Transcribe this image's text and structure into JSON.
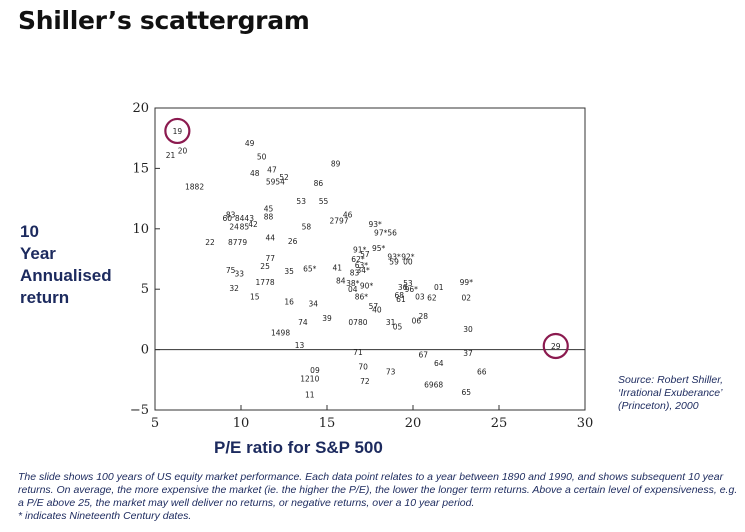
{
  "title": "Shiller’s scattergram",
  "ylabel_lines": [
    "10",
    "Year",
    "Annualised",
    "return"
  ],
  "xlabel": "P/E ratio for S&P 500",
  "source_lines": [
    "Source: Robert Shiller,",
    "‘Irrational Exuberance’",
    "(Princeton), 2000"
  ],
  "caption": "The slide shows 100 years of US equity market performance. Each data point relates to a year between 1890 and 1990, and shows subsequent 10 year returns. On average, the more expensive the market (ie. the higher the P/E), the lower the longer term returns. Above a certain level of expensiveness, e.g. a P/E above 25, the market may well deliver no returns, or negative returns, over a 10 year period.",
  "footnote": "* indicates Nineteenth Century dates.",
  "colors": {
    "accent": "#8b1a4f",
    "text_blue": "#1c2a5e",
    "axis": "#333333"
  },
  "chart_data": {
    "type": "scatter",
    "xlabel": "P/E ratio for S&P 500",
    "ylabel": "10 Year Annualised return",
    "xlim": [
      5,
      30
    ],
    "ylim": [
      -5,
      20
    ],
    "xticks": [
      5,
      10,
      15,
      20,
      25,
      30
    ],
    "yticks": [
      -5,
      0,
      5,
      10,
      15,
      20
    ],
    "reference_line_y": 0,
    "grid": false,
    "highlighted": [
      "19",
      "29"
    ],
    "points": [
      {
        "label": "19",
        "x": 6.3,
        "y": 18.1
      },
      {
        "label": "20",
        "x": 6.6,
        "y": 16.5
      },
      {
        "label": "21",
        "x": 5.9,
        "y": 16.1
      },
      {
        "label": "1882",
        "x": 7.3,
        "y": 13.5
      },
      {
        "label": "49",
        "x": 10.5,
        "y": 17.1
      },
      {
        "label": "50",
        "x": 11.2,
        "y": 16.0
      },
      {
        "label": "47",
        "x": 11.8,
        "y": 14.9
      },
      {
        "label": "48",
        "x": 10.8,
        "y": 14.6
      },
      {
        "label": "52",
        "x": 12.5,
        "y": 14.3
      },
      {
        "label": "5954",
        "x": 12.0,
        "y": 13.9
      },
      {
        "label": "86",
        "x": 14.5,
        "y": 13.8
      },
      {
        "label": "89",
        "x": 15.5,
        "y": 15.4
      },
      {
        "label": "53",
        "x": 13.5,
        "y": 12.3
      },
      {
        "label": "55",
        "x": 14.8,
        "y": 12.3
      },
      {
        "label": "45",
        "x": 11.6,
        "y": 11.7
      },
      {
        "label": "83",
        "x": 9.4,
        "y": 11.2
      },
      {
        "label": "60",
        "x": 9.2,
        "y": 10.9
      },
      {
        "label": "8443",
        "x": 10.2,
        "y": 10.9
      },
      {
        "label": "88",
        "x": 11.6,
        "y": 11.0
      },
      {
        "label": "46",
        "x": 16.2,
        "y": 11.2
      },
      {
        "label": "2797",
        "x": 15.7,
        "y": 10.7
      },
      {
        "label": "24",
        "x": 9.6,
        "y": 10.2
      },
      {
        "label": "85",
        "x": 10.2,
        "y": 10.2
      },
      {
        "label": "42",
        "x": 10.7,
        "y": 10.4
      },
      {
        "label": "58",
        "x": 13.8,
        "y": 10.2
      },
      {
        "label": "93*",
        "x": 17.8,
        "y": 10.4
      },
      {
        "label": "97*56",
        "x": 18.4,
        "y": 9.7
      },
      {
        "label": "22",
        "x": 8.2,
        "y": 8.9
      },
      {
        "label": "8779",
        "x": 9.8,
        "y": 8.9
      },
      {
        "label": "44",
        "x": 11.7,
        "y": 9.3
      },
      {
        "label": "26",
        "x": 13.0,
        "y": 9.0
      },
      {
        "label": "91*",
        "x": 16.9,
        "y": 8.3
      },
      {
        "label": "95*",
        "x": 18.0,
        "y": 8.4
      },
      {
        "label": "57",
        "x": 17.2,
        "y": 7.9
      },
      {
        "label": "62*",
        "x": 16.8,
        "y": 7.5
      },
      {
        "label": "63*",
        "x": 17.0,
        "y": 7.0
      },
      {
        "label": "34*",
        "x": 17.1,
        "y": 6.6
      },
      {
        "label": "83",
        "x": 16.6,
        "y": 6.4
      },
      {
        "label": "93*",
        "x": 18.9,
        "y": 7.7
      },
      {
        "label": "92*",
        "x": 19.7,
        "y": 7.7
      },
      {
        "label": "59",
        "x": 18.9,
        "y": 7.3
      },
      {
        "label": "00",
        "x": 19.7,
        "y": 7.3
      },
      {
        "label": "77",
        "x": 11.7,
        "y": 7.6
      },
      {
        "label": "25",
        "x": 11.4,
        "y": 6.9
      },
      {
        "label": "75",
        "x": 9.4,
        "y": 6.6
      },
      {
        "label": "33",
        "x": 9.9,
        "y": 6.3
      },
      {
        "label": "35",
        "x": 12.8,
        "y": 6.5
      },
      {
        "label": "65*",
        "x": 14.0,
        "y": 6.7
      },
      {
        "label": "41",
        "x": 15.6,
        "y": 6.8
      },
      {
        "label": "1778",
        "x": 11.4,
        "y": 5.6
      },
      {
        "label": "84",
        "x": 15.8,
        "y": 5.7
      },
      {
        "label": "38*",
        "x": 16.5,
        "y": 5.5
      },
      {
        "label": "32",
        "x": 9.6,
        "y": 5.1
      },
      {
        "label": "04",
        "x": 16.5,
        "y": 5.0
      },
      {
        "label": "90*",
        "x": 17.3,
        "y": 5.3
      },
      {
        "label": "36",
        "x": 19.4,
        "y": 5.2
      },
      {
        "label": "53",
        "x": 19.7,
        "y": 5.5
      },
      {
        "label": "96*",
        "x": 19.9,
        "y": 5.0
      },
      {
        "label": "01",
        "x": 21.5,
        "y": 5.2
      },
      {
        "label": "99*",
        "x": 23.1,
        "y": 5.6
      },
      {
        "label": "15",
        "x": 10.8,
        "y": 4.4
      },
      {
        "label": "16",
        "x": 12.8,
        "y": 4.0
      },
      {
        "label": "34",
        "x": 14.2,
        "y": 3.8
      },
      {
        "label": "86*",
        "x": 17.0,
        "y": 4.4
      },
      {
        "label": "68",
        "x": 19.2,
        "y": 4.5
      },
      {
        "label": "61",
        "x": 19.3,
        "y": 4.2
      },
      {
        "label": "03",
        "x": 20.4,
        "y": 4.4
      },
      {
        "label": "62",
        "x": 21.1,
        "y": 4.3
      },
      {
        "label": "02",
        "x": 23.1,
        "y": 4.3
      },
      {
        "label": "57",
        "x": 17.7,
        "y": 3.6
      },
      {
        "label": "40",
        "x": 17.9,
        "y": 3.3
      },
      {
        "label": "74",
        "x": 13.6,
        "y": 2.3
      },
      {
        "label": "39",
        "x": 15.0,
        "y": 2.6
      },
      {
        "label": "0780",
        "x": 16.8,
        "y": 2.3
      },
      {
        "label": "31",
        "x": 18.7,
        "y": 2.3
      },
      {
        "label": "05",
        "x": 19.1,
        "y": 1.9
      },
      {
        "label": "06",
        "x": 20.2,
        "y": 2.4
      },
      {
        "label": "28",
        "x": 20.6,
        "y": 2.8
      },
      {
        "label": "30",
        "x": 23.2,
        "y": 1.7
      },
      {
        "label": "1498",
        "x": 12.3,
        "y": 1.4
      },
      {
        "label": "13",
        "x": 13.4,
        "y": 0.4
      },
      {
        "label": "71",
        "x": 16.8,
        "y": -0.2
      },
      {
        "label": "67",
        "x": 20.6,
        "y": -0.4
      },
      {
        "label": "37",
        "x": 23.2,
        "y": -0.3
      },
      {
        "label": "64",
        "x": 21.5,
        "y": -1.1
      },
      {
        "label": "29",
        "x": 28.3,
        "y": 0.3
      },
      {
        "label": "70",
        "x": 17.1,
        "y": -1.4
      },
      {
        "label": "09",
        "x": 14.3,
        "y": -1.7
      },
      {
        "label": "73",
        "x": 18.7,
        "y": -1.8
      },
      {
        "label": "66",
        "x": 24.0,
        "y": -1.8
      },
      {
        "label": "1210",
        "x": 14.0,
        "y": -2.4
      },
      {
        "label": "72",
        "x": 17.2,
        "y": -2.6
      },
      {
        "label": "6968",
        "x": 21.2,
        "y": -2.9
      },
      {
        "label": "65",
        "x": 23.1,
        "y": -3.5
      },
      {
        "label": "11",
        "x": 14.0,
        "y": -3.7
      }
    ]
  }
}
